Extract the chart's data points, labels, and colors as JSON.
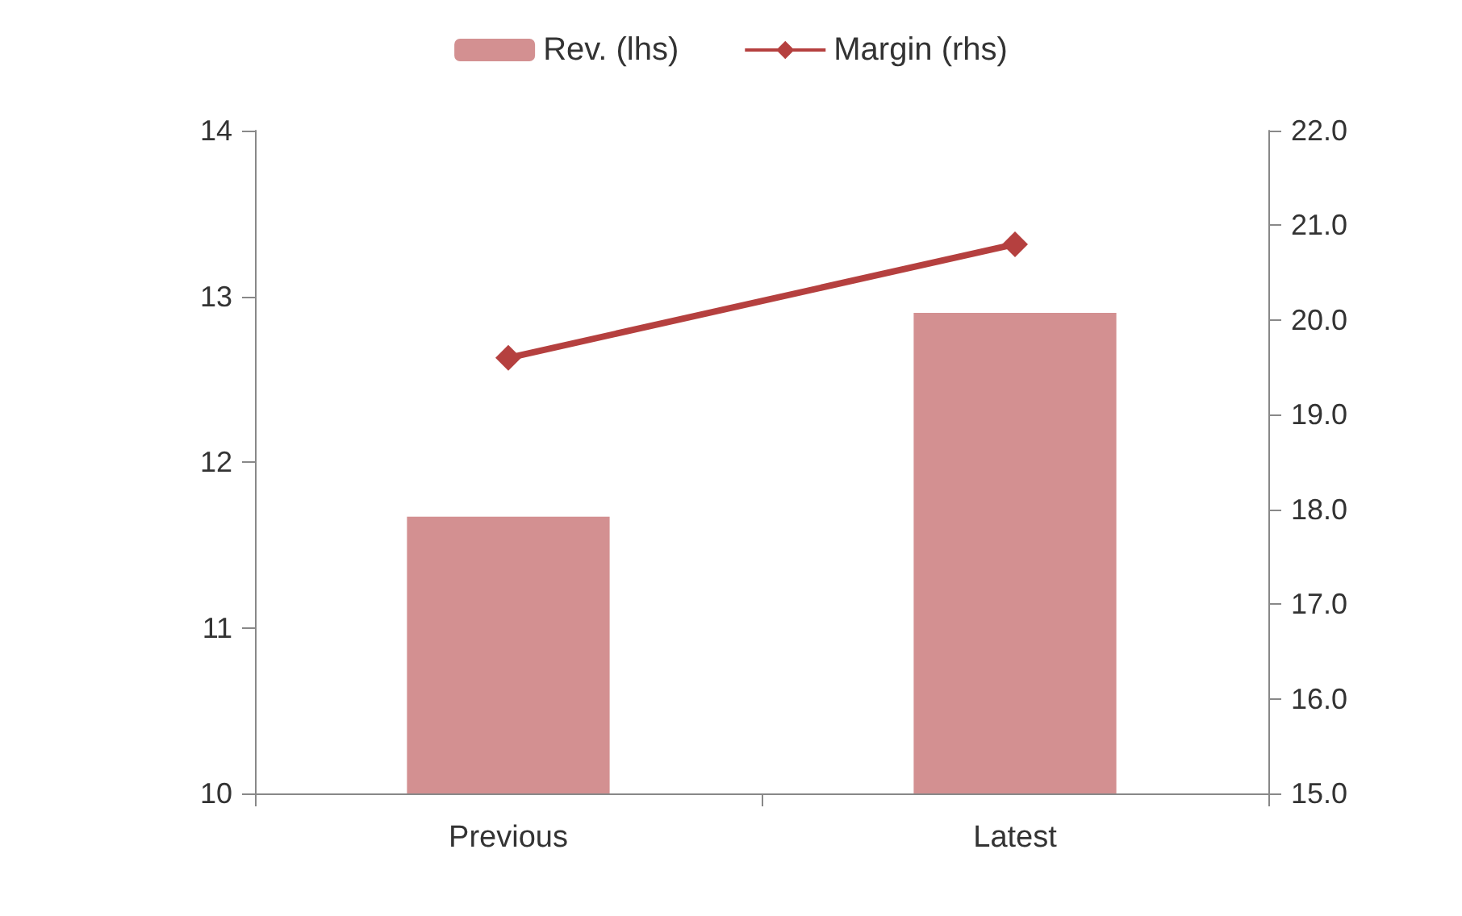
{
  "chart_data": {
    "type": "bar",
    "categories": [
      "Previous",
      "Latest"
    ],
    "series": [
      {
        "name": "Rev. (lhs)",
        "color": "#d39091",
        "values": [
          11.67,
          12.9
        ]
      },
      {
        "name": "Margin (rhs)",
        "type": "line",
        "color": "#b5403f",
        "axis": "y2",
        "marker": "diamond",
        "line_style": "solid",
        "values": [
          19.6,
          20.8
        ]
      }
    ],
    "ylim": [
      10,
      14
    ],
    "yticks": [
      10,
      11,
      12,
      13,
      14
    ],
    "y2lim": [
      15,
      22
    ],
    "y2ticks": [
      {
        "value": 15,
        "label": "15.0"
      },
      {
        "value": 16,
        "label": "16.0"
      },
      {
        "value": 17,
        "label": "17.0"
      },
      {
        "value": 18,
        "label": "18.0"
      },
      {
        "value": 19,
        "label": "19.0"
      },
      {
        "value": 20,
        "label": "20.0"
      },
      {
        "value": 21,
        "label": "21.0"
      },
      {
        "value": 22,
        "label": "22.0"
      }
    ],
    "grid": false,
    "legend": "top"
  }
}
